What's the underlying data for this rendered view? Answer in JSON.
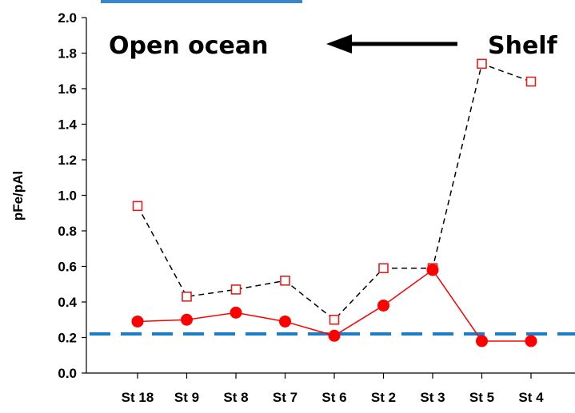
{
  "chart_data": {
    "type": "line",
    "title": "",
    "xlabel": "",
    "ylabel": "pFe/pAl",
    "ylim": [
      0,
      2.0
    ],
    "yticks": [
      "0.0",
      "0.2",
      "0.4",
      "0.6",
      "0.8",
      "1.0",
      "1.2",
      "1.4",
      "1.6",
      "1.8",
      "2.0"
    ],
    "categories": [
      "St 18",
      "St 9",
      "St 8",
      "St 7",
      "St 6",
      "St 2",
      "St 3",
      "St 5",
      "St 4"
    ],
    "series": [
      {
        "values": [
          0.94,
          0.43,
          0.47,
          0.52,
          0.3,
          0.59,
          0.59,
          1.74,
          1.64
        ],
        "color": "#e02020",
        "line_style": "dashed",
        "line_color": "#000000",
        "marker": "open-square"
      },
      {
        "values": [
          0.29,
          0.3,
          0.34,
          0.29,
          0.21,
          0.38,
          0.58,
          0.18,
          0.18
        ],
        "color": "#ff0000",
        "line_style": "solid",
        "marker": "filled-circle"
      }
    ],
    "reference_line": {
      "value": 0.22,
      "color": "#1a7fc8",
      "style": "dashed"
    },
    "annotations": {
      "left_text": "Open ocean",
      "right_text": "Shelf",
      "arrow": "right-to-left"
    },
    "grid": false,
    "legend": "none"
  }
}
